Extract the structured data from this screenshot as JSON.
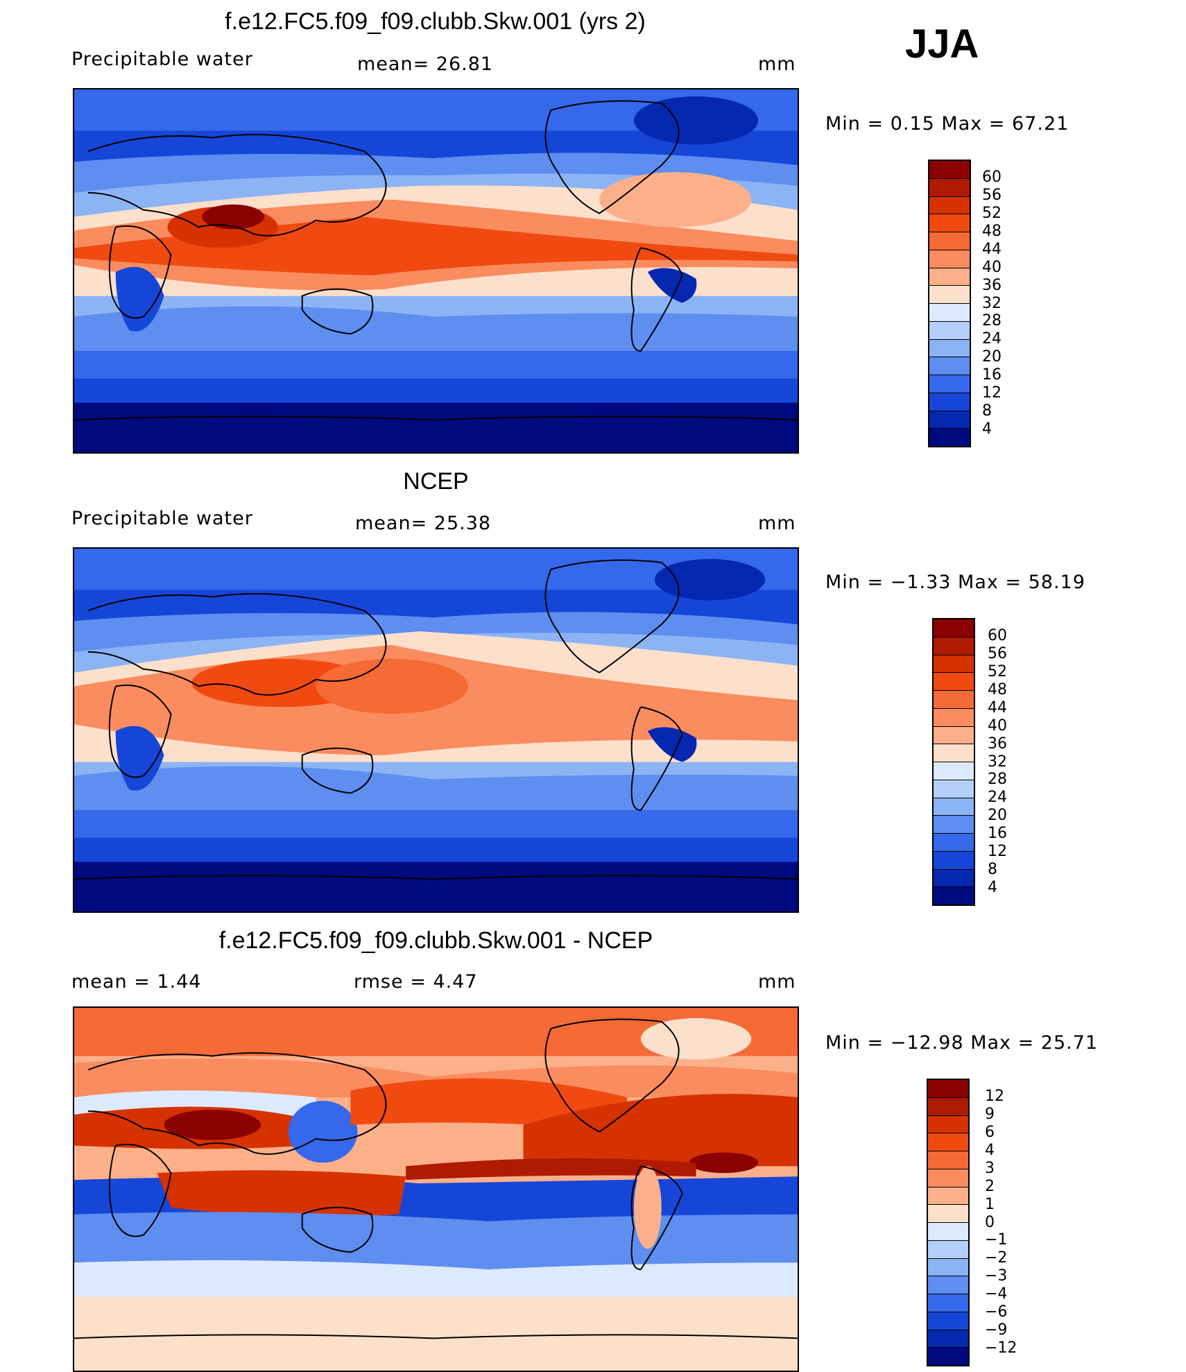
{
  "season": "JJA",
  "panels": [
    {
      "title": "f.e12.FC5.f09_f09.clubb.Skw.001 (yrs 2)",
      "left_label": "Precipitable water",
      "center_label": "mean=   26.81",
      "units": "mm",
      "minmax": "Min =    0.15 Max =   67.21",
      "colorbar_labels": [
        "60",
        "56",
        "52",
        "48",
        "44",
        "40",
        "36",
        "32",
        "28",
        "24",
        "20",
        "16",
        "12",
        "8",
        "4"
      ],
      "colorbar_colors": [
        "#8b0000",
        "#b01a00",
        "#d63200",
        "#f04a10",
        "#f56a35",
        "#fa8c5f",
        "#fcb08a",
        "#fde0cc",
        "#dceafd",
        "#b4d0fa",
        "#8cb4f5",
        "#5d8ef0",
        "#3568ea",
        "#1646d8",
        "#0528b0",
        "#000a80"
      ]
    },
    {
      "title": "NCEP",
      "left_label": "Precipitable water",
      "center_label": "mean=   25.38",
      "units": "mm",
      "minmax": "Min =   −1.33 Max =   58.19",
      "colorbar_labels": [
        "60",
        "56",
        "52",
        "48",
        "44",
        "40",
        "36",
        "32",
        "28",
        "24",
        "20",
        "16",
        "12",
        "8",
        "4"
      ],
      "colorbar_colors": [
        "#8b0000",
        "#b01a00",
        "#d63200",
        "#f04a10",
        "#f56a35",
        "#fa8c5f",
        "#fcb08a",
        "#fde0cc",
        "#dceafd",
        "#b4d0fa",
        "#8cb4f5",
        "#5d8ef0",
        "#3568ea",
        "#1646d8",
        "#0528b0",
        "#000a80"
      ]
    },
    {
      "title": "f.e12.FC5.f09_f09.clubb.Skw.001 - NCEP",
      "left_label": "mean =    1.44",
      "center_label": "rmse =    4.47",
      "units": "mm",
      "minmax": "Min = −12.98 Max =   25.71",
      "colorbar_labels": [
        "12",
        "9",
        "6",
        "4",
        "3",
        "2",
        "1",
        "0",
        "−1",
        "−2",
        "−3",
        "−4",
        "−6",
        "−9",
        "−12"
      ],
      "colorbar_colors": [
        "#8b0000",
        "#b01a00",
        "#d63200",
        "#f04a10",
        "#f56a35",
        "#fa8c5f",
        "#fcb08a",
        "#fde0cc",
        "#dceafd",
        "#b4d0fa",
        "#8cb4f5",
        "#5d8ef0",
        "#3568ea",
        "#1646d8",
        "#0528b0",
        "#000a80"
      ]
    }
  ]
}
